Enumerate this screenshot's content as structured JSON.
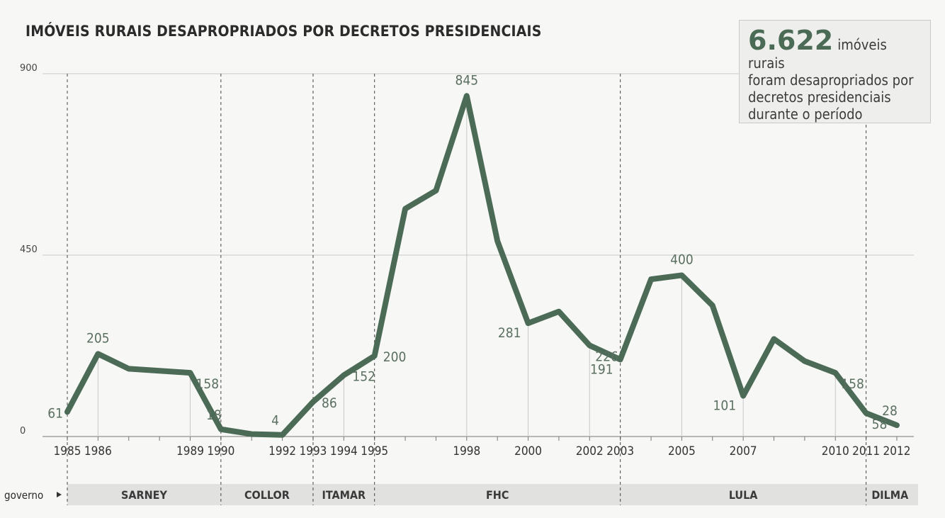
{
  "chart_data": {
    "type": "line",
    "title": "IMÓVEIS RURAIS DESAPROPRIADOS POR DECRETOS PRESIDENCIAIS",
    "ylim": [
      0,
      900
    ],
    "yticks": [
      "0",
      "450",
      "900"
    ],
    "grid": true,
    "x": [
      1985,
      1986,
      1987,
      1988,
      1989,
      1990,
      1991,
      1992,
      1993,
      1994,
      1995,
      1996,
      1997,
      1998,
      1999,
      2000,
      2001,
      2002,
      2003,
      2004,
      2005,
      2006,
      2007,
      2008,
      2009,
      2010,
      2011,
      2012
    ],
    "values": [
      61,
      205,
      168,
      163,
      158,
      18,
      6,
      4,
      86,
      152,
      200,
      565,
      610,
      845,
      485,
      281,
      310,
      226,
      191,
      390,
      400,
      325,
      101,
      242,
      187,
      158,
      58,
      28
    ],
    "xtick_labels": [
      "1985",
      "1986",
      "1989",
      "1990",
      "1992",
      "1993",
      "1994",
      "1995",
      "1998",
      "2000",
      "2002",
      "2003",
      "2005",
      "2007",
      "2010",
      "2011",
      "2012"
    ],
    "data_labels": [
      {
        "year": 1985,
        "text": "61"
      },
      {
        "year": 1986,
        "text": "205"
      },
      {
        "year": 1989,
        "text": "158"
      },
      {
        "year": 1990,
        "text": "18"
      },
      {
        "year": 1992,
        "text": "4"
      },
      {
        "year": 1993,
        "text": "86"
      },
      {
        "year": 1994,
        "text": "152"
      },
      {
        "year": 1995,
        "text": "200"
      },
      {
        "year": 1998,
        "text": "845"
      },
      {
        "year": 2000,
        "text": "281"
      },
      {
        "year": 2002,
        "text": "226"
      },
      {
        "year": 2003,
        "text": "191"
      },
      {
        "year": 2005,
        "text": "400"
      },
      {
        "year": 2007,
        "text": "101"
      },
      {
        "year": 2010,
        "text": "158"
      },
      {
        "year": 2011,
        "text": "58"
      },
      {
        "year": 2012,
        "text": "28"
      }
    ],
    "governments_label": "governo",
    "governments": [
      {
        "name": "SARNEY",
        "start": 1985,
        "end": 1990
      },
      {
        "name": "COLLOR",
        "start": 1990,
        "end": 1993
      },
      {
        "name": "ITAMAR",
        "start": 1993,
        "end": 1995
      },
      {
        "name": "FHC",
        "start": 1995,
        "end": 2003
      },
      {
        "name": "LULA",
        "start": 2003,
        "end": 2011
      },
      {
        "name": "DILMA",
        "start": 2011,
        "end": 2012
      }
    ],
    "line_color": "#4b6b57"
  },
  "callout": {
    "number": "6.622",
    "lead": "imóveis rurais",
    "rest": "foram desapropriados por decretos presidenciais durante o período"
  }
}
